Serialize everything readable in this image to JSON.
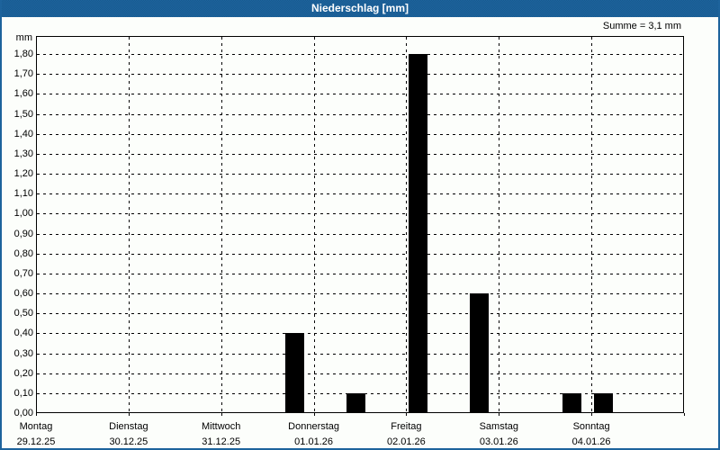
{
  "window": {
    "title": "Niederschlag [mm]"
  },
  "summary": {
    "sum_label": "Summe = 3,1 mm"
  },
  "colors": {
    "titlebar_blue": "#1e649d",
    "titlebar_dither_blue": "#175a90",
    "frame_blue": "#1d639c",
    "page_background": "#fcfefb",
    "plot_border": "#000000",
    "grid": "#000000",
    "bar": "#000000",
    "title_text": "#ffffff",
    "label_text": "#000000"
  },
  "chart_data": {
    "type": "bar",
    "title": "Niederschlag [mm]",
    "unit_label": "mm",
    "sum_annotation": "Summe = 3,1 mm",
    "total_mm": 3.1,
    "ylim": [
      0,
      1.89
    ],
    "ytick_step_mm": 0.1,
    "ytick_labels": [
      "0,00",
      "0,10",
      "0,20",
      "0,30",
      "0,40",
      "0,50",
      "0,60",
      "0,70",
      "0,80",
      "0,90",
      "1,00",
      "1,10",
      "1,20",
      "1,30",
      "1,40",
      "1,50",
      "1,60",
      "1,70",
      "1,80"
    ],
    "grid": "dashed",
    "legend": "none",
    "x_categories": [
      {
        "day": "Montag",
        "date": "29.12.25"
      },
      {
        "day": "Dienstag",
        "date": "30.12.25"
      },
      {
        "day": "Mittwoch",
        "date": "31.12.25"
      },
      {
        "day": "Donnerstag",
        "date": "01.01.26"
      },
      {
        "day": "Freitag",
        "date": "02.01.26"
      },
      {
        "day": "Samstag",
        "date": "03.01.26"
      },
      {
        "day": "Sonntag",
        "date": "04.01.26"
      }
    ],
    "bars": [
      {
        "x_days": 2.79,
        "value_mm": 0.4
      },
      {
        "x_days": 3.46,
        "value_mm": 0.1
      },
      {
        "x_days": 4.13,
        "value_mm": 1.8
      },
      {
        "x_days": 4.79,
        "value_mm": 0.6
      },
      {
        "x_days": 5.79,
        "value_mm": 0.1
      },
      {
        "x_days": 6.13,
        "value_mm": 0.1
      }
    ]
  }
}
